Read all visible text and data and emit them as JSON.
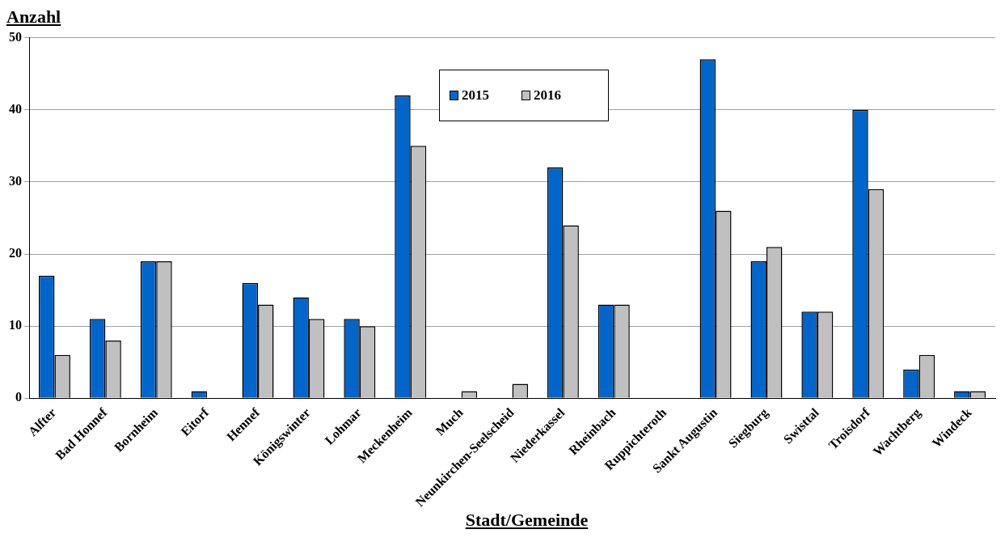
{
  "chart_data": {
    "type": "bar",
    "ylabel": "Anzahl",
    "xlabel": "Stadt/Gemeinde",
    "categories": [
      "Alfter",
      "Bad Honnef",
      "Bornheim",
      "Eitorf",
      "Hennef",
      "Königswinter",
      "Lohmar",
      "Meckenheim",
      "Much",
      "Neunkirchen-Seelscheid",
      "Niederkassel",
      "Rheinbach",
      "Ruppichteroth",
      "Sankt Augustin",
      "Siegburg",
      "Swisttal",
      "Troisdorf",
      "Wachtberg",
      "Windeck"
    ],
    "series": [
      {
        "name": "2015",
        "color": "#0066cc",
        "values": [
          17,
          11,
          19,
          1,
          16,
          14,
          11,
          42,
          0,
          0,
          32,
          13,
          0,
          47,
          19,
          12,
          40,
          4,
          1
        ]
      },
      {
        "name": "2016",
        "color": "#c0c0c0",
        "values": [
          6,
          8,
          19,
          0,
          13,
          11,
          10,
          35,
          1,
          2,
          24,
          13,
          0,
          26,
          21,
          12,
          29,
          6,
          1
        ]
      }
    ],
    "ylim": [
      0,
      50
    ],
    "yticks": [
      0,
      10,
      20,
      30,
      40,
      50
    ],
    "grid": "y",
    "legend": "top"
  }
}
